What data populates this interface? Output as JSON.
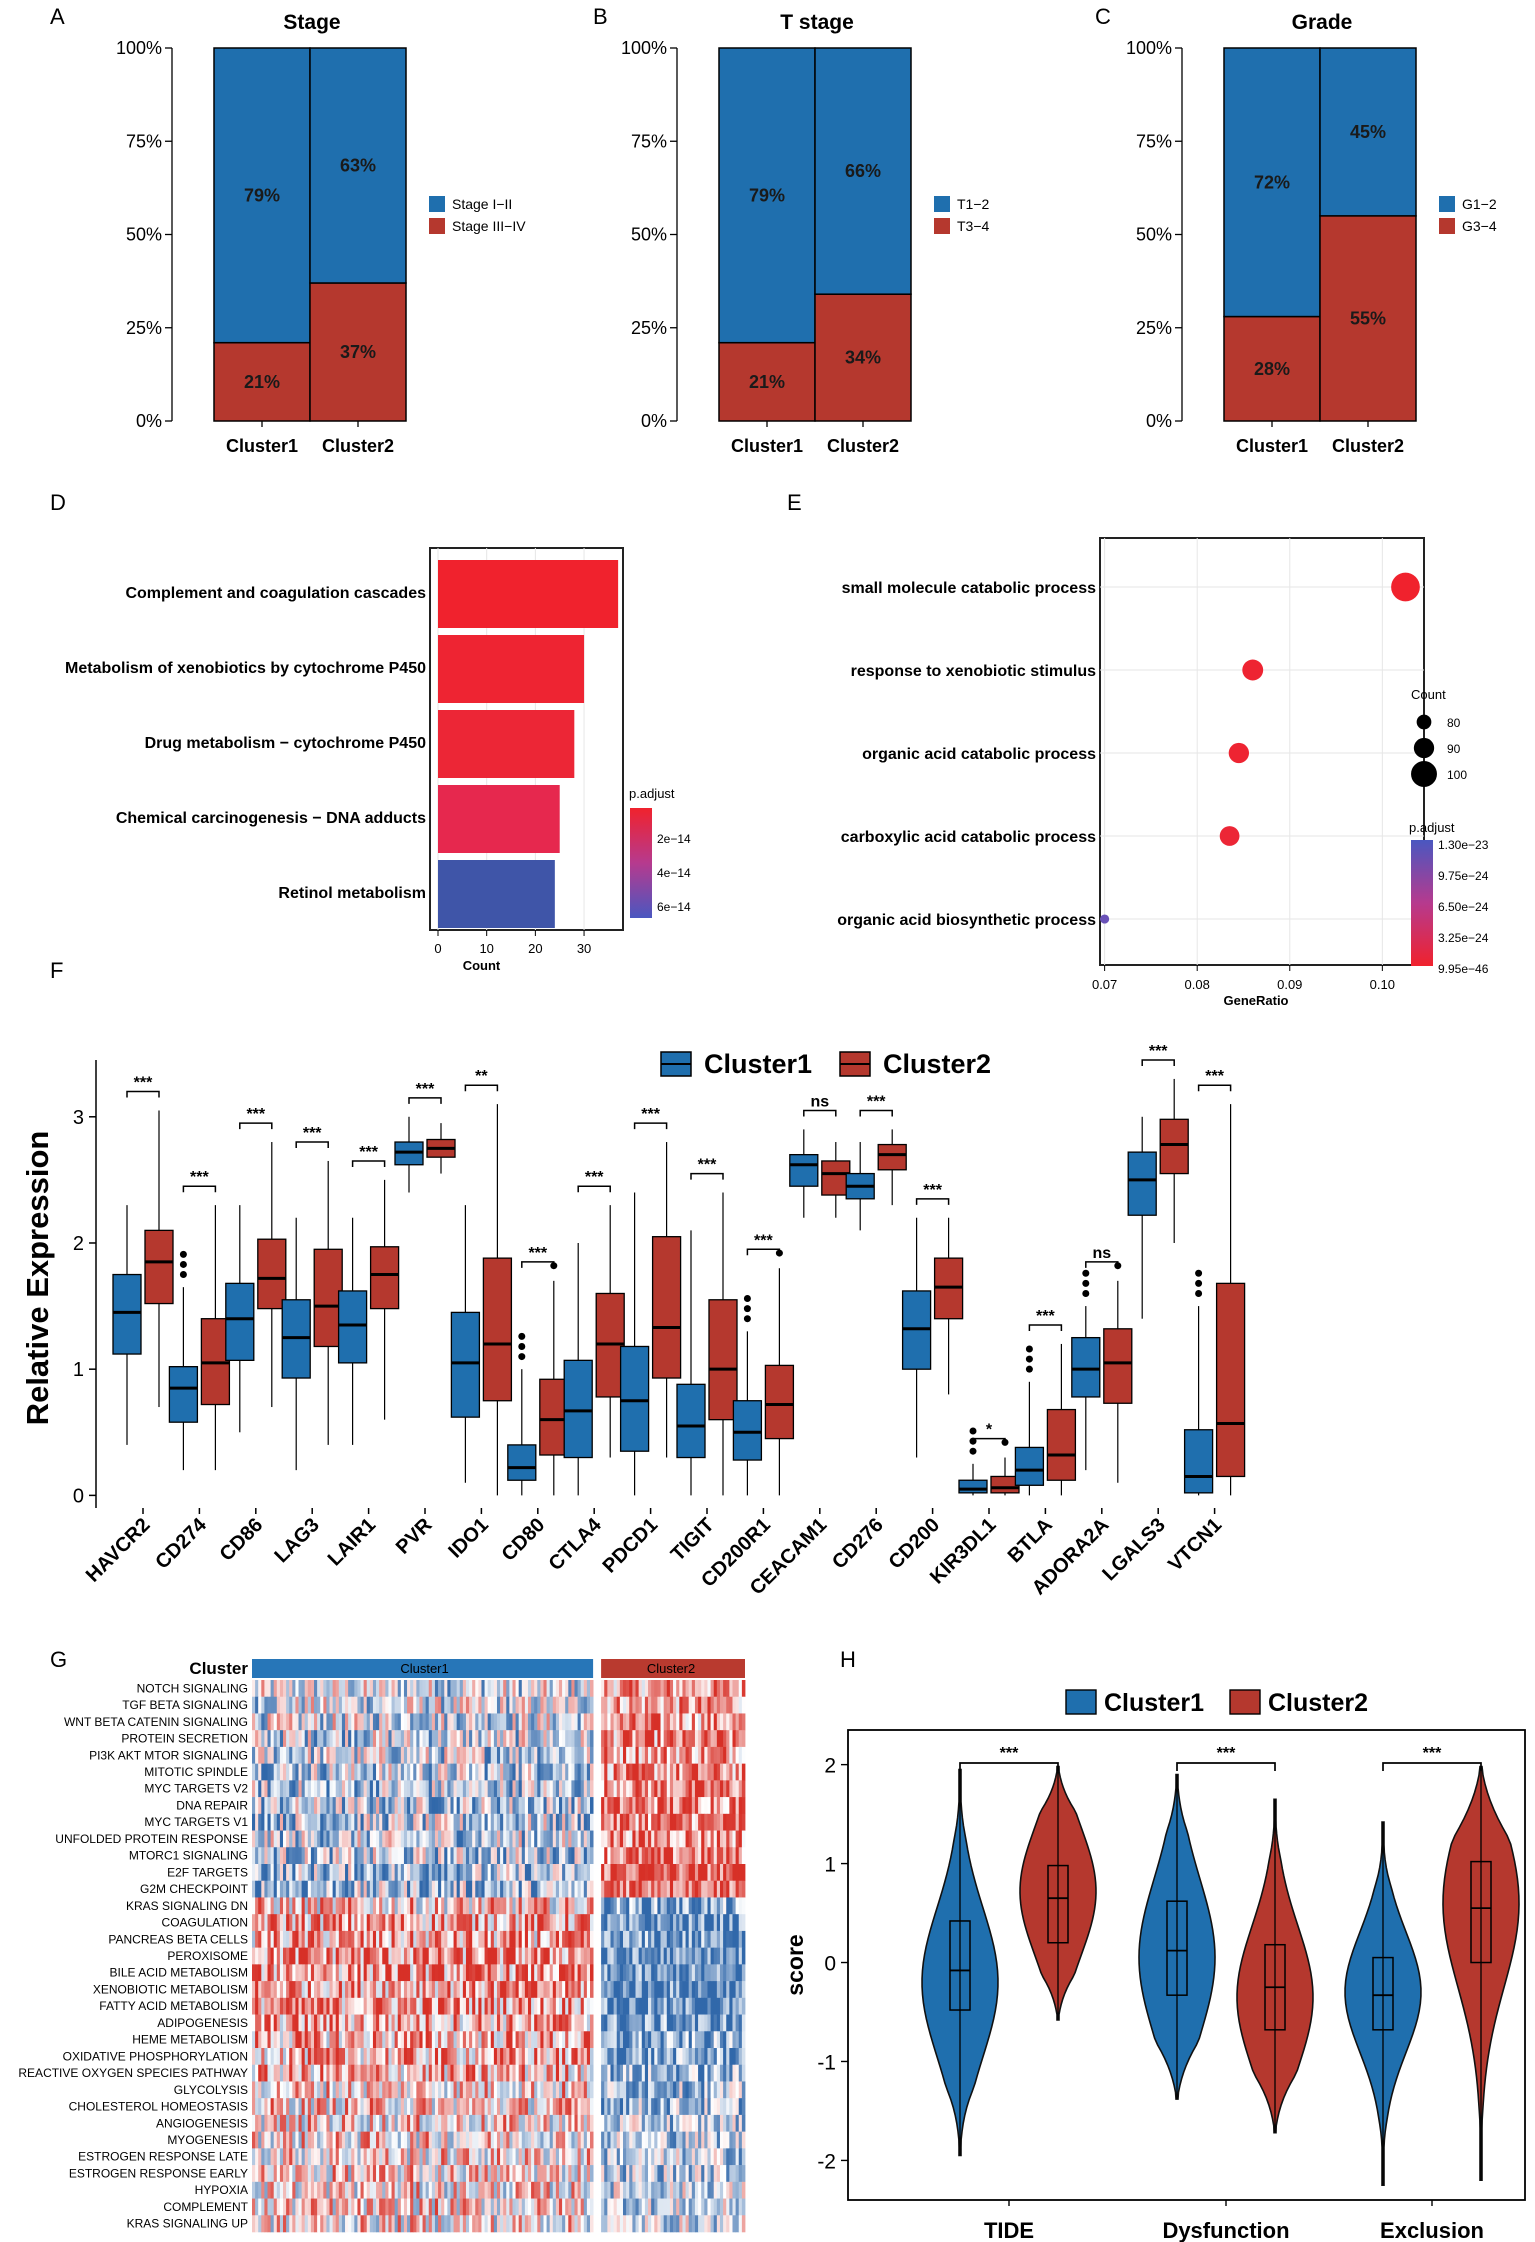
{
  "colors": {
    "blue": "#1f6fae",
    "red": "#b5382e",
    "grid": "#e6e6e6"
  },
  "panel_labels": [
    "A",
    "B",
    "C",
    "D",
    "E",
    "F",
    "G",
    "H"
  ],
  "cluster_labels": [
    "Cluster1",
    "Cluster2"
  ],
  "chart_data": [
    {
      "id": "A",
      "type": "bar",
      "stacked": true,
      "title": "Stage",
      "categories": [
        "Cluster1",
        "Cluster2"
      ],
      "series": [
        {
          "name": "Stage I−II",
          "values": [
            79,
            63
          ],
          "labels": [
            "79%",
            "63%"
          ]
        },
        {
          "name": "Stage III−IV",
          "values": [
            21,
            37
          ],
          "labels": [
            "21%",
            "37%"
          ]
        }
      ],
      "yticks": [
        "0%",
        "25%",
        "50%",
        "75%",
        "100%"
      ],
      "ylim": [
        0,
        100
      ]
    },
    {
      "id": "B",
      "type": "bar",
      "stacked": true,
      "title": "T stage",
      "categories": [
        "Cluster1",
        "Cluster2"
      ],
      "series": [
        {
          "name": "T1−2",
          "values": [
            79,
            66
          ],
          "labels": [
            "79%",
            "66%"
          ]
        },
        {
          "name": "T3−4",
          "values": [
            21,
            34
          ],
          "labels": [
            "21%",
            "34%"
          ]
        }
      ],
      "yticks": [
        "0%",
        "25%",
        "50%",
        "75%",
        "100%"
      ],
      "ylim": [
        0,
        100
      ]
    },
    {
      "id": "C",
      "type": "bar",
      "stacked": true,
      "title": "Grade",
      "categories": [
        "Cluster1",
        "Cluster2"
      ],
      "series": [
        {
          "name": "G1−2",
          "values": [
            72,
            45
          ],
          "labels": [
            "72%",
            "45%"
          ]
        },
        {
          "name": "G3−4",
          "values": [
            28,
            55
          ],
          "labels": [
            "28%",
            "55%"
          ]
        }
      ],
      "yticks": [
        "0%",
        "25%",
        "50%",
        "75%",
        "100%"
      ],
      "ylim": [
        0,
        100
      ]
    },
    {
      "id": "D",
      "type": "bar",
      "orientation": "horizontal",
      "categories": [
        "Complement and coagulation cascades",
        "Metabolism of xenobiotics by cytochrome P450",
        "Drug metabolism − cytochrome P450",
        "Chemical carcinogenesis − DNA adducts",
        "Retinol metabolism"
      ],
      "values": [
        37,
        30,
        28,
        25,
        24
      ],
      "padj": [
        1e-15,
        5e-15,
        8e-15,
        2.2e-14,
        6.5e-14
      ],
      "xlabel": "Count",
      "xticks": [
        0,
        10,
        20,
        30
      ],
      "xlim": [
        0,
        38
      ],
      "legend_title": "p.adjust",
      "legend_ticks": [
        "2e−14",
        "4e−14",
        "6e−14"
      ]
    },
    {
      "id": "E",
      "type": "scatter",
      "categories": [
        "small molecule catabolic process",
        "response to xenobiotic stimulus",
        "organic acid catabolic process",
        "carboxylic acid catabolic process",
        "organic acid biosynthetic process"
      ],
      "x": [
        0.1025,
        0.086,
        0.0845,
        0.0835,
        0.07
      ],
      "count": [
        105,
        91,
        90,
        89,
        70
      ],
      "padj": [
        9.95e-46,
        1e-40,
        1e-39,
        1e-38,
        1.3e-23
      ],
      "xlabel": "GeneRatio",
      "xticks": [
        0.07,
        0.08,
        0.09,
        0.1
      ],
      "xtick_labels": [
        "0.07",
        "0.08",
        "0.09",
        "0.10"
      ],
      "xlim": [
        0.0695,
        0.1045
      ],
      "size_legend_title": "Count",
      "size_legend": [
        80,
        90,
        100
      ],
      "color_legend_title": "p.adjust",
      "color_legend_ticks": [
        "1.30e−23",
        "9.75e−24",
        "6.50e−24",
        "3.25e−24",
        "9.95e−46"
      ]
    },
    {
      "id": "F",
      "type": "box",
      "ylabel": "Relative Expression",
      "legend": [
        "Cluster1",
        "Cluster2"
      ],
      "yticks": [
        0,
        1,
        2,
        3
      ],
      "ylim": [
        -0.1,
        3.45
      ],
      "genes": [
        "HAVCR2",
        "CD274",
        "CD86",
        "LAG3",
        "LAIR1",
        "PVR",
        "IDO1",
        "CD80",
        "CTLA4",
        "PDCD1",
        "TIGIT",
        "CD200R1",
        "CEACAM1",
        "CD276",
        "CD200",
        "KIR3DL1",
        "BTLA",
        "ADORA2A",
        "LGALS3",
        "VTCN1"
      ],
      "significance": [
        "***",
        "***",
        "***",
        "***",
        "***",
        "***",
        "**",
        "***",
        "***",
        "***",
        "***",
        "***",
        "ns",
        "***",
        "***",
        "*",
        "***",
        "ns",
        "***",
        "***"
      ],
      "cluster1": [
        [
          0.4,
          1.12,
          1.45,
          1.75,
          2.3
        ],
        [
          0.2,
          0.58,
          0.85,
          1.02,
          1.65
        ],
        [
          0.5,
          1.07,
          1.4,
          1.68,
          2.3
        ],
        [
          0.2,
          0.93,
          1.25,
          1.55,
          2.2
        ],
        [
          0.4,
          1.05,
          1.35,
          1.62,
          2.2
        ],
        [
          2.4,
          2.62,
          2.72,
          2.8,
          3.0
        ],
        [
          0.1,
          0.62,
          1.05,
          1.45,
          2.3
        ],
        [
          0.0,
          0.12,
          0.22,
          0.4,
          1.0
        ],
        [
          0.0,
          0.3,
          0.67,
          1.07,
          2.0
        ],
        [
          0.0,
          0.35,
          0.75,
          1.18,
          2.4
        ],
        [
          0.0,
          0.3,
          0.55,
          0.88,
          2.1
        ],
        [
          0.0,
          0.28,
          0.5,
          0.75,
          1.3
        ],
        [
          2.2,
          2.45,
          2.62,
          2.7,
          2.9
        ],
        [
          2.1,
          2.35,
          2.45,
          2.55,
          2.8
        ],
        [
          0.3,
          1.0,
          1.32,
          1.62,
          2.2
        ],
        [
          0.0,
          0.02,
          0.05,
          0.12,
          0.25
        ],
        [
          0.0,
          0.08,
          0.2,
          0.38,
          0.9
        ],
        [
          0.2,
          0.78,
          1.0,
          1.25,
          1.5
        ],
        [
          1.4,
          2.22,
          2.5,
          2.72,
          3.0
        ],
        [
          0.0,
          0.02,
          0.15,
          0.52,
          1.5
        ]
      ],
      "cluster2": [
        [
          0.7,
          1.52,
          1.85,
          2.1,
          3.05
        ],
        [
          0.2,
          0.72,
          1.05,
          1.4,
          2.3
        ],
        [
          0.7,
          1.48,
          1.72,
          2.03,
          2.8
        ],
        [
          0.4,
          1.18,
          1.5,
          1.95,
          2.65
        ],
        [
          0.6,
          1.48,
          1.75,
          1.97,
          2.5
        ],
        [
          2.55,
          2.68,
          2.75,
          2.82,
          2.95
        ],
        [
          0.0,
          0.75,
          1.2,
          1.88,
          3.1
        ],
        [
          0.0,
          0.32,
          0.6,
          0.92,
          1.7
        ],
        [
          0.3,
          0.78,
          1.2,
          1.6,
          2.3
        ],
        [
          0.3,
          0.93,
          1.33,
          2.05,
          2.8
        ],
        [
          0.0,
          0.6,
          1.0,
          1.55,
          2.4
        ],
        [
          0.0,
          0.45,
          0.72,
          1.03,
          1.8
        ],
        [
          2.2,
          2.38,
          2.55,
          2.65,
          2.8
        ],
        [
          2.3,
          2.58,
          2.7,
          2.78,
          2.9
        ],
        [
          0.8,
          1.4,
          1.65,
          1.88,
          2.2
        ],
        [
          0.0,
          0.02,
          0.06,
          0.15,
          0.3
        ],
        [
          0.0,
          0.12,
          0.32,
          0.68,
          1.2
        ],
        [
          0.1,
          0.73,
          1.05,
          1.32,
          1.7
        ],
        [
          2.0,
          2.55,
          2.78,
          2.98,
          3.3
        ],
        [
          0.0,
          0.15,
          0.57,
          1.68,
          3.1
        ]
      ]
    },
    {
      "id": "G",
      "type": "heatmap",
      "annotation_label": "Cluster",
      "groups": [
        "Cluster1",
        "Cluster2"
      ],
      "group_split": 0.7,
      "rows": [
        "NOTCH SIGNALING",
        "TGF BETA SIGNALING",
        "WNT BETA CATENIN SIGNALING",
        "PROTEIN SECRETION",
        "PI3K AKT MTOR SIGNALING",
        "MITOTIC SPINDLE",
        "MYC TARGETS V2",
        "DNA REPAIR",
        "MYC TARGETS V1",
        "UNFOLDED PROTEIN RESPONSE",
        "MTORC1 SIGNALING",
        "E2F TARGETS",
        "G2M CHECKPOINT",
        "KRAS SIGNALING DN",
        "COAGULATION",
        "PANCREAS BETA CELLS",
        "PEROXISOME",
        "BILE ACID METABOLISM",
        "XENOBIOTIC METABOLISM",
        "FATTY ACID METABOLISM",
        "ADIPOGENESIS",
        "HEME METABOLISM",
        "OXIDATIVE PHOSPHORYLATION",
        "REACTIVE OXYGEN SPECIES PATHWAY",
        "GLYCOLYSIS",
        "CHOLESTEROL HOMEOSTASIS",
        "ANGIOGENESIS",
        "MYOGENESIS",
        "ESTROGEN RESPONSE LATE",
        "ESTROGEN RESPONSE EARLY",
        "HYPOXIA",
        "COMPLEMENT",
        "KRAS SIGNALING UP"
      ],
      "cluster1_tendency": [
        -0.15,
        -0.15,
        -0.15,
        -0.2,
        -0.2,
        -0.25,
        -0.3,
        -0.3,
        -0.3,
        -0.25,
        -0.3,
        -0.4,
        -0.4,
        0.2,
        0.45,
        0.35,
        0.5,
        0.5,
        0.5,
        0.5,
        0.4,
        0.35,
        0.35,
        0.3,
        0.2,
        0.2,
        0.15,
        0.15,
        0.15,
        0.15,
        0.1,
        0.15,
        0.1
      ],
      "cluster2_tendency": [
        0.45,
        0.45,
        0.45,
        0.5,
        0.5,
        0.5,
        0.6,
        0.6,
        0.6,
        0.55,
        0.6,
        0.8,
        0.8,
        -0.6,
        -0.8,
        -0.7,
        -0.8,
        -0.8,
        -0.8,
        -0.8,
        -0.7,
        -0.6,
        -0.6,
        -0.5,
        -0.4,
        -0.4,
        -0.3,
        -0.3,
        -0.3,
        -0.3,
        -0.2,
        -0.25,
        -0.2
      ]
    },
    {
      "id": "H",
      "type": "violin",
      "ylabel": "score",
      "legend": [
        "Cluster1",
        "Cluster2"
      ],
      "categories": [
        "TIDE",
        "Dysfunction",
        "Exclusion"
      ],
      "significance": [
        "***",
        "***",
        "***"
      ],
      "yticks": [
        -2,
        -1,
        0,
        1,
        2
      ],
      "ylim": [
        -2.4,
        2.35
      ],
      "cluster1": [
        {
          "min": -1.95,
          "max": 1.95,
          "q1": -0.48,
          "median": -0.08,
          "q3": 0.42,
          "peak": -0.2
        },
        {
          "min": -1.38,
          "max": 1.9,
          "q1": -0.33,
          "median": 0.12,
          "q3": 0.62,
          "peak": 0.05
        },
        {
          "min": -2.25,
          "max": 1.42,
          "q1": -0.68,
          "median": -0.33,
          "q3": 0.05,
          "peak": -0.3
        }
      ],
      "cluster2": [
        {
          "min": -0.58,
          "max": 1.98,
          "q1": 0.2,
          "median": 0.65,
          "q3": 0.98,
          "peak": 0.72
        },
        {
          "min": -1.72,
          "max": 1.65,
          "q1": -0.68,
          "median": -0.25,
          "q3": 0.18,
          "peak": -0.35
        },
        {
          "min": -2.2,
          "max": 1.98,
          "q1": 0.0,
          "median": 0.55,
          "q3": 1.02,
          "peak": 0.6
        }
      ]
    }
  ]
}
